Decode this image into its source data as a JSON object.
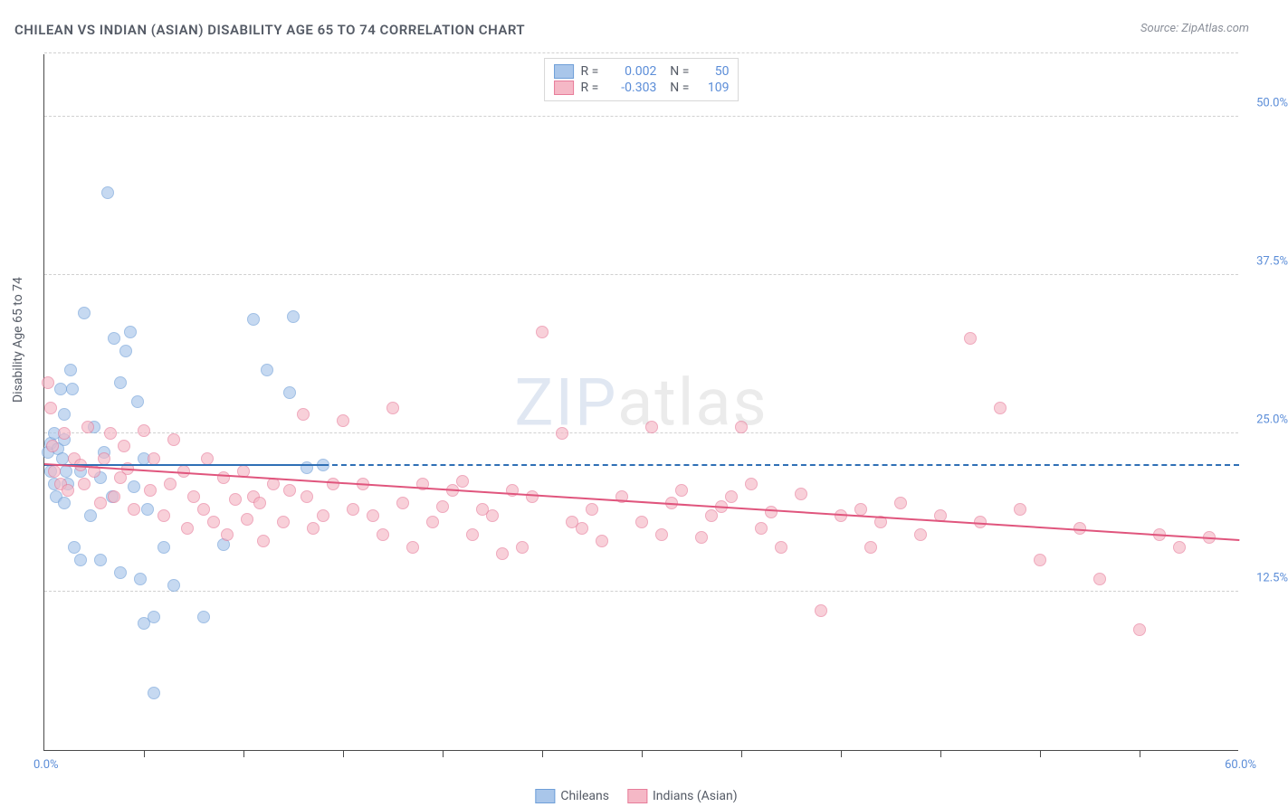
{
  "title": "CHILEAN VS INDIAN (ASIAN) DISABILITY AGE 65 TO 74 CORRELATION CHART",
  "source": "Source: ZipAtlas.com",
  "ylabel": "Disability Age 65 to 74",
  "watermark_a": "ZIP",
  "watermark_b": "atlas",
  "chart": {
    "type": "scatter",
    "xlim": [
      0,
      60
    ],
    "ylim": [
      0,
      55
    ],
    "y_ticks": [
      12.5,
      25.0,
      37.5,
      50.0
    ],
    "y_tick_labels": [
      "12.5%",
      "25.0%",
      "37.5%",
      "50.0%"
    ],
    "x_origin_label": "0.0%",
    "x_max_label": "60.0%",
    "x_tick_positions": [
      5,
      10,
      15,
      20,
      25,
      30,
      35,
      40,
      45,
      50,
      55
    ],
    "grid_color": "#d6d6d6",
    "plot_border_color": "#4a4a4a",
    "tick_label_color": "#5b8dd8",
    "axis_text_color": "#555b66",
    "marker_radius": 7,
    "series": [
      {
        "name": "Chileans",
        "fill": "#a9c6ea",
        "stroke": "#6f9fd8",
        "trend_color": "#2f6fb5",
        "R": "0.002",
        "N": "50",
        "trend": {
          "x1": 0,
          "y1": 22.4,
          "x2": 14,
          "y2": 22.4,
          "dashed_extend_to": 60
        },
        "points": [
          [
            0.2,
            23.5
          ],
          [
            0.3,
            24.2
          ],
          [
            0.3,
            22.0
          ],
          [
            0.5,
            21.0
          ],
          [
            0.5,
            25.0
          ],
          [
            0.6,
            20.0
          ],
          [
            0.7,
            23.8
          ],
          [
            0.8,
            28.5
          ],
          [
            0.9,
            23.0
          ],
          [
            1.0,
            24.5
          ],
          [
            1.0,
            26.5
          ],
          [
            1.0,
            19.5
          ],
          [
            1.1,
            22.0
          ],
          [
            1.2,
            21.0
          ],
          [
            1.3,
            30.0
          ],
          [
            1.4,
            28.5
          ],
          [
            1.5,
            16.0
          ],
          [
            1.8,
            22.0
          ],
          [
            1.8,
            15.0
          ],
          [
            2.0,
            34.5
          ],
          [
            2.3,
            18.5
          ],
          [
            2.5,
            25.5
          ],
          [
            2.8,
            21.5
          ],
          [
            2.8,
            15.0
          ],
          [
            3.0,
            23.5
          ],
          [
            3.2,
            44.0
          ],
          [
            3.4,
            20.0
          ],
          [
            3.5,
            32.5
          ],
          [
            3.8,
            29.0
          ],
          [
            3.8,
            14.0
          ],
          [
            4.1,
            31.5
          ],
          [
            4.3,
            33.0
          ],
          [
            4.5,
            20.8
          ],
          [
            4.7,
            27.5
          ],
          [
            4.8,
            13.5
          ],
          [
            5.0,
            23.0
          ],
          [
            5.0,
            10.0
          ],
          [
            5.2,
            19.0
          ],
          [
            5.5,
            10.5
          ],
          [
            5.5,
            4.5
          ],
          [
            6.0,
            16.0
          ],
          [
            6.5,
            13.0
          ],
          [
            8.0,
            10.5
          ],
          [
            9.0,
            16.2
          ],
          [
            10.5,
            34.0
          ],
          [
            11.2,
            30.0
          ],
          [
            12.3,
            28.2
          ],
          [
            12.5,
            34.2
          ],
          [
            13.2,
            22.3
          ],
          [
            14.0,
            22.5
          ]
        ]
      },
      {
        "name": "Indians (Asian)",
        "fill": "#f5b8c6",
        "stroke": "#e77c9a",
        "trend_color": "#e0557d",
        "R": "-0.303",
        "N": "109",
        "trend": {
          "x1": 0,
          "y1": 22.5,
          "x2": 60,
          "y2": 16.5
        },
        "points": [
          [
            0.2,
            29.0
          ],
          [
            0.3,
            27.0
          ],
          [
            0.4,
            24.0
          ],
          [
            0.5,
            22.0
          ],
          [
            0.8,
            21.0
          ],
          [
            1.0,
            25.0
          ],
          [
            1.2,
            20.5
          ],
          [
            1.5,
            23.0
          ],
          [
            1.8,
            22.5
          ],
          [
            2.0,
            21.0
          ],
          [
            2.2,
            25.5
          ],
          [
            2.5,
            22.0
          ],
          [
            2.8,
            19.5
          ],
          [
            3.0,
            23.0
          ],
          [
            3.3,
            25.0
          ],
          [
            3.5,
            20.0
          ],
          [
            3.8,
            21.5
          ],
          [
            4.0,
            24.0
          ],
          [
            4.2,
            22.2
          ],
          [
            4.5,
            19.0
          ],
          [
            5.0,
            25.2
          ],
          [
            5.3,
            20.5
          ],
          [
            5.5,
            23.0
          ],
          [
            6.0,
            18.5
          ],
          [
            6.3,
            21.0
          ],
          [
            6.5,
            24.5
          ],
          [
            7.0,
            22.0
          ],
          [
            7.2,
            17.5
          ],
          [
            7.5,
            20.0
          ],
          [
            8.0,
            19.0
          ],
          [
            8.2,
            23.0
          ],
          [
            8.5,
            18.0
          ],
          [
            9.0,
            21.5
          ],
          [
            9.2,
            17.0
          ],
          [
            9.6,
            19.8
          ],
          [
            10.0,
            22.0
          ],
          [
            10.2,
            18.2
          ],
          [
            10.5,
            20.0
          ],
          [
            10.8,
            19.5
          ],
          [
            11.0,
            16.5
          ],
          [
            11.5,
            21.0
          ],
          [
            12.0,
            18.0
          ],
          [
            12.3,
            20.5
          ],
          [
            13.0,
            26.5
          ],
          [
            13.2,
            20.0
          ],
          [
            13.5,
            17.5
          ],
          [
            14.0,
            18.5
          ],
          [
            14.5,
            21.0
          ],
          [
            15.0,
            26.0
          ],
          [
            15.5,
            19.0
          ],
          [
            16.0,
            21.0
          ],
          [
            16.5,
            18.5
          ],
          [
            17.0,
            17.0
          ],
          [
            17.5,
            27.0
          ],
          [
            18.0,
            19.5
          ],
          [
            18.5,
            16.0
          ],
          [
            19.0,
            21.0
          ],
          [
            19.5,
            18.0
          ],
          [
            20.0,
            19.2
          ],
          [
            20.5,
            20.5
          ],
          [
            21.0,
            21.2
          ],
          [
            21.5,
            17.0
          ],
          [
            22.0,
            19.0
          ],
          [
            22.5,
            18.5
          ],
          [
            23.0,
            15.5
          ],
          [
            23.5,
            20.5
          ],
          [
            24.0,
            16.0
          ],
          [
            24.5,
            20.0
          ],
          [
            25.0,
            33.0
          ],
          [
            26.0,
            25.0
          ],
          [
            26.5,
            18.0
          ],
          [
            27.0,
            17.5
          ],
          [
            27.5,
            19.0
          ],
          [
            28.0,
            16.5
          ],
          [
            29.0,
            20.0
          ],
          [
            30.0,
            18.0
          ],
          [
            30.5,
            25.5
          ],
          [
            31.0,
            17.0
          ],
          [
            31.5,
            19.5
          ],
          [
            32.0,
            20.5
          ],
          [
            33.0,
            16.8
          ],
          [
            33.5,
            18.5
          ],
          [
            34.0,
            19.2
          ],
          [
            34.5,
            20.0
          ],
          [
            35.0,
            25.5
          ],
          [
            35.5,
            21.0
          ],
          [
            36.0,
            17.5
          ],
          [
            36.5,
            18.8
          ],
          [
            37.0,
            16.0
          ],
          [
            38.0,
            20.2
          ],
          [
            39.0,
            11.0
          ],
          [
            40.0,
            18.5
          ],
          [
            41.0,
            19.0
          ],
          [
            41.5,
            16.0
          ],
          [
            42.0,
            18.0
          ],
          [
            43.0,
            19.5
          ],
          [
            44.0,
            17.0
          ],
          [
            45.0,
            18.5
          ],
          [
            46.5,
            32.5
          ],
          [
            47.0,
            18.0
          ],
          [
            48.0,
            27.0
          ],
          [
            49.0,
            19.0
          ],
          [
            50.0,
            15.0
          ],
          [
            52.0,
            17.5
          ],
          [
            53.0,
            13.5
          ],
          [
            55.0,
            9.5
          ],
          [
            56.0,
            17.0
          ],
          [
            57.0,
            16.0
          ],
          [
            58.5,
            16.8
          ]
        ]
      }
    ],
    "legend_bottom": [
      {
        "label": "Chileans",
        "fill": "#a9c6ea",
        "stroke": "#6f9fd8"
      },
      {
        "label": "Indians (Asian)",
        "fill": "#f5b8c6",
        "stroke": "#e77c9a"
      }
    ]
  }
}
